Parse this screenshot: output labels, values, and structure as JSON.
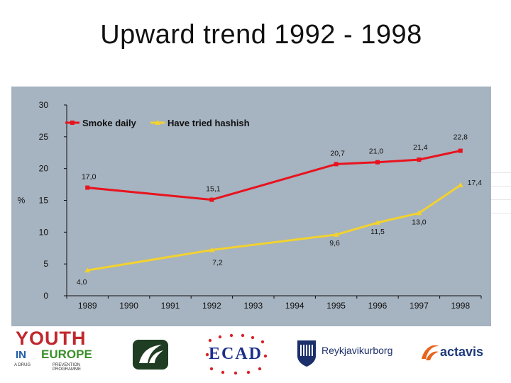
{
  "slide": {
    "title": "Upward trend 1992 - 1998"
  },
  "colors": {
    "plot_background": "#a6b3c0",
    "smoke_daily": "#e8131e",
    "hashish": "#f2d22e"
  },
  "chart_data": {
    "type": "line",
    "title": "",
    "xlabel": "",
    "ylabel": "%",
    "x": [
      "1989",
      "1990",
      "1991",
      "1992",
      "1993",
      "1994",
      "1995",
      "1996",
      "1997",
      "1998"
    ],
    "ylim": [
      0,
      30
    ],
    "yticks": [
      0,
      5,
      10,
      15,
      20,
      25,
      30
    ],
    "grid": false,
    "legend_position": "top-left",
    "series": [
      {
        "name": "Smoke daily",
        "color": "#e8131e",
        "points": [
          {
            "x": "1989",
            "y": 17.0,
            "label": "17,0"
          },
          {
            "x": "1992",
            "y": 15.1,
            "label": "15,1"
          },
          {
            "x": "1995",
            "y": 20.7,
            "label": "20,7"
          },
          {
            "x": "1996",
            "y": 21.0,
            "label": "21,0"
          },
          {
            "x": "1997",
            "y": 21.4,
            "label": "21,4"
          },
          {
            "x": "1998",
            "y": 22.8,
            "label": "22,8"
          }
        ]
      },
      {
        "name": "Have tried hashish",
        "color": "#f2d22e",
        "points": [
          {
            "x": "1989",
            "y": 4.0,
            "label": "4,0"
          },
          {
            "x": "1992",
            "y": 7.2,
            "label": "7,2"
          },
          {
            "x": "1995",
            "y": 9.6,
            "label": "9,6"
          },
          {
            "x": "1996",
            "y": 11.5,
            "label": "11,5"
          },
          {
            "x": "1997",
            "y": 13.0,
            "label": "13,0"
          },
          {
            "x": "1998",
            "y": 17.4,
            "label": "17,4"
          }
        ]
      }
    ]
  },
  "logos": {
    "youth_in_europe": {
      "word1": "YOUTH",
      "word2": "IN",
      "word3": "EUROPE",
      "sub_left": "A DRUG",
      "sub_right": "PREVENTION PROGRAMME"
    },
    "emblem": {
      "icon": "green-emblem-icon"
    },
    "ecad": {
      "text": "ECAD"
    },
    "reykjavik": {
      "text": "Reykjavikurborg",
      "icon": "city-shield-icon"
    },
    "actavis": {
      "text": "actavis",
      "icon": "actavis-swoosh-icon"
    }
  }
}
